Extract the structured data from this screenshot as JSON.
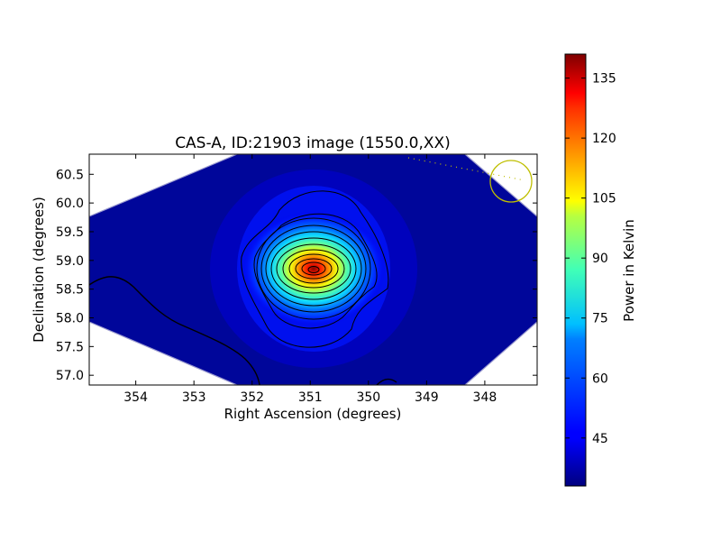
{
  "chart_data": {
    "type": "heatmap",
    "title": "CAS-A, ID:21903 image (1550.0,XX)",
    "xlabel": "Right Ascension (degrees)",
    "ylabel": "Declination (degrees)",
    "xlim": [
      354.8,
      347.1
    ],
    "ylim": [
      56.83,
      60.85
    ],
    "x_ticks": [
      354,
      353,
      352,
      351,
      350,
      349,
      348
    ],
    "y_ticks": [
      57.0,
      57.5,
      58.0,
      58.5,
      59.0,
      59.5,
      60.0,
      60.5
    ],
    "peak": {
      "ra": 350.85,
      "dec": 58.83,
      "value": 140
    },
    "background_level": 38,
    "sidelobe_level": 45,
    "contour_count": 12,
    "beam_marker": {
      "ra": 347.45,
      "dec": 60.37,
      "color": "#bfbf00"
    },
    "colorbar": {
      "label": "Power in Kelvin",
      "range": [
        33,
        141
      ],
      "ticks": [
        45,
        60,
        75,
        90,
        105,
        120,
        135
      ],
      "colormap": "jet"
    },
    "grid": false
  }
}
